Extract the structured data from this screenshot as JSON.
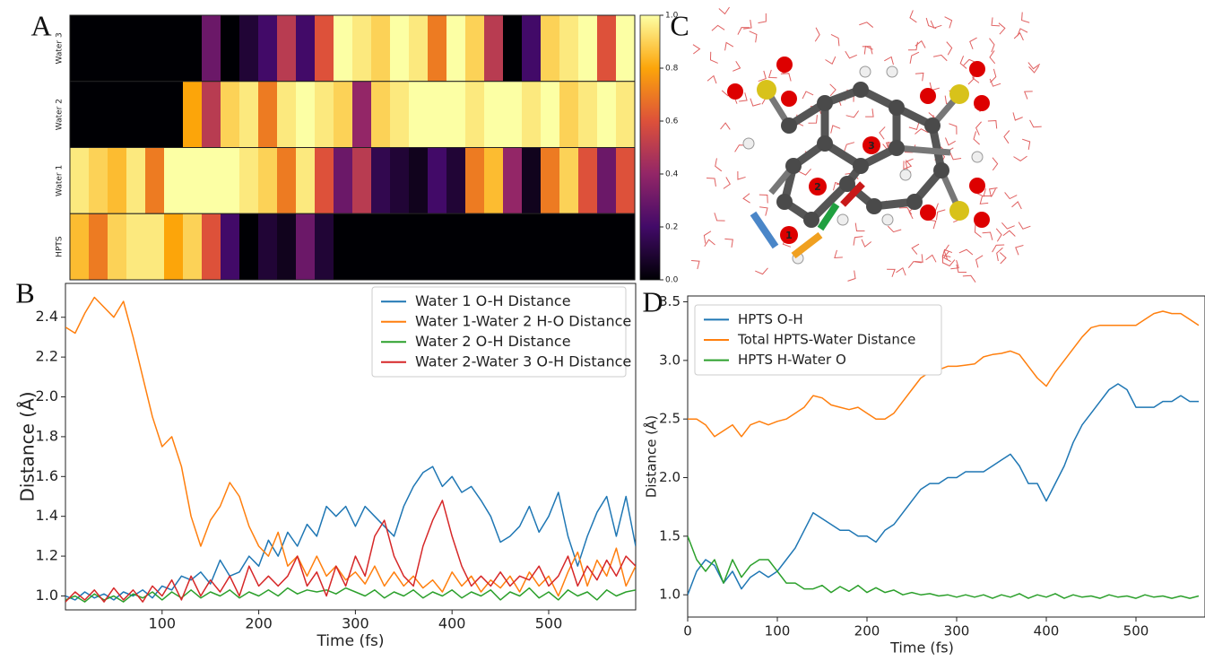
{
  "chart_data": [
    {
      "type": "heatmap",
      "label": "A",
      "rows": [
        "Water 3",
        "Water 2",
        "Water 1",
        "HPTS"
      ],
      "values": [
        [
          0,
          0,
          0,
          0,
          0,
          0,
          0,
          0.3,
          0,
          0.1,
          0.2,
          0.5,
          0.2,
          0.6,
          1,
          0.95,
          0.9,
          1,
          0.95,
          0.7,
          1,
          0.9,
          0.5,
          0,
          0.2,
          0.9,
          0.95,
          1,
          0.6,
          1
        ],
        [
          0,
          0,
          0,
          0,
          0,
          0,
          0.8,
          0.5,
          0.9,
          0.95,
          0.7,
          0.95,
          1,
          0.95,
          0.9,
          0.4,
          0.9,
          0.95,
          1,
          1,
          1,
          0.95,
          1,
          1,
          0.95,
          1,
          0.9,
          0.95,
          1,
          0.95
        ],
        [
          0.95,
          0.9,
          0.85,
          0.95,
          0.7,
          1,
          1,
          1,
          1,
          0.95,
          0.9,
          0.7,
          0.95,
          0.6,
          0.3,
          0.5,
          0.15,
          0.1,
          0.05,
          0.2,
          0.1,
          0.7,
          0.85,
          0.4,
          0.05,
          0.7,
          0.9,
          0.6,
          0.3,
          0.6
        ],
        [
          0.85,
          0.7,
          0.9,
          0.95,
          0.95,
          0.8,
          0.9,
          0.6,
          0.2,
          0,
          0.1,
          0.05,
          0.3,
          0.1,
          0,
          0,
          0,
          0,
          0,
          0,
          0,
          0,
          0,
          0,
          0,
          0,
          0,
          0,
          0,
          0
        ]
      ],
      "colormap": [
        "#000004",
        "#420a68",
        "#932667",
        "#dd513a",
        "#fca50a",
        "#fcffa4"
      ],
      "zlim": [
        0,
        1
      ],
      "zticks": [
        {
          "value": 0,
          "label": "0.0"
        },
        0.2,
        0.4,
        0.6,
        0.8,
        {
          "value": 1,
          "label": "1.0"
        }
      ]
    },
    {
      "type": "image",
      "label": "C",
      "atom_labels": [
        "1",
        "2",
        "3"
      ]
    },
    {
      "type": "line",
      "label": "B",
      "xlabel": "Time (fs)",
      "ylabel": "Distance (Å)",
      "x": [
        0,
        10,
        20,
        30,
        40,
        50,
        60,
        70,
        80,
        90,
        100,
        110,
        120,
        130,
        140,
        150,
        160,
        170,
        180,
        190,
        200,
        210,
        220,
        230,
        240,
        250,
        260,
        270,
        280,
        290,
        300,
        310,
        320,
        330,
        340,
        350,
        360,
        370,
        380,
        390,
        400,
        410,
        420,
        430,
        440,
        450,
        460,
        470,
        480,
        490,
        500,
        510,
        520,
        530,
        540,
        550,
        560,
        570,
        580,
        590
      ],
      "series": [
        {
          "name": "Water 1 O-H Distance",
          "color": "#1f77b4",
          "values": [
            1.0,
            0.98,
            1.02,
            0.99,
            1.01,
            0.98,
            1.02,
            1.0,
            1.03,
            0.99,
            1.05,
            1.03,
            1.1,
            1.08,
            1.12,
            1.06,
            1.18,
            1.1,
            1.12,
            1.2,
            1.15,
            1.28,
            1.2,
            1.32,
            1.25,
            1.36,
            1.3,
            1.45,
            1.4,
            1.45,
            1.35,
            1.45,
            1.4,
            1.35,
            1.3,
            1.45,
            1.55,
            1.62,
            1.65,
            1.55,
            1.6,
            1.52,
            1.55,
            1.48,
            1.4,
            1.27,
            1.3,
            1.35,
            1.45,
            1.32,
            1.4,
            1.52,
            1.3,
            1.15,
            1.3,
            1.42,
            1.5,
            1.3,
            1.5,
            1.25
          ]
        },
        {
          "name": "Water 1-Water 2 H-O Distance",
          "color": "#ff7f0e",
          "values": [
            2.35,
            2.32,
            2.42,
            2.5,
            2.45,
            2.4,
            2.48,
            2.3,
            2.1,
            1.9,
            1.75,
            1.8,
            1.65,
            1.4,
            1.25,
            1.38,
            1.45,
            1.57,
            1.5,
            1.35,
            1.25,
            1.2,
            1.32,
            1.15,
            1.2,
            1.1,
            1.2,
            1.1,
            1.15,
            1.08,
            1.12,
            1.06,
            1.15,
            1.05,
            1.12,
            1.05,
            1.1,
            1.04,
            1.08,
            1.02,
            1.12,
            1.05,
            1.1,
            1.02,
            1.08,
            1.04,
            1.1,
            1.02,
            1.12,
            1.05,
            1.1,
            1.0,
            1.12,
            1.22,
            1.05,
            1.18,
            1.1,
            1.24,
            1.05,
            1.15
          ]
        },
        {
          "name": "Water 2 O-H Distance",
          "color": "#2ca02c",
          "values": [
            0.98,
            1.0,
            0.97,
            1.01,
            0.98,
            1.0,
            0.97,
            1.01,
            0.99,
            1.02,
            0.98,
            1.02,
            0.99,
            1.03,
            0.99,
            1.02,
            1.0,
            1.03,
            0.99,
            1.02,
            1.0,
            1.03,
            1.0,
            1.04,
            1.01,
            1.03,
            1.02,
            1.03,
            1.01,
            1.04,
            1.02,
            1.0,
            1.03,
            0.99,
            1.02,
            1.0,
            1.03,
            0.99,
            1.02,
            1.0,
            1.03,
            0.99,
            1.02,
            1.0,
            1.03,
            0.98,
            1.02,
            1.0,
            1.04,
            0.99,
            1.02,
            0.98,
            1.03,
            1.0,
            1.02,
            0.98,
            1.03,
            1.0,
            1.02,
            1.03
          ]
        },
        {
          "name": "Water 2-Water 3 O-H Distance",
          "color": "#d62728",
          "values": [
            0.97,
            1.02,
            0.98,
            1.03,
            0.97,
            1.04,
            0.98,
            1.03,
            0.97,
            1.05,
            1.0,
            1.08,
            0.98,
            1.1,
            1.0,
            1.08,
            1.02,
            1.1,
            1.0,
            1.15,
            1.05,
            1.1,
            1.05,
            1.1,
            1.2,
            1.05,
            1.12,
            1.0,
            1.15,
            1.05,
            1.2,
            1.1,
            1.3,
            1.38,
            1.2,
            1.1,
            1.05,
            1.25,
            1.38,
            1.48,
            1.3,
            1.15,
            1.05,
            1.1,
            1.05,
            1.12,
            1.05,
            1.1,
            1.08,
            1.15,
            1.05,
            1.1,
            1.2,
            1.05,
            1.15,
            1.08,
            1.18,
            1.1,
            1.2,
            1.15
          ]
        }
      ],
      "xlim": [
        0,
        590
      ],
      "ylim": [
        0.93,
        2.57
      ],
      "xticks": [
        100,
        200,
        300,
        400,
        500
      ],
      "yticks": [
        {
          "value": 1,
          "label": "1.0"
        },
        1.2,
        1.4,
        1.6,
        1.8,
        {
          "value": 2,
          "label": "2.0"
        },
        2.2,
        2.4
      ]
    },
    {
      "type": "line",
      "label": "D",
      "xlabel": "Time (fs)",
      "ylabel": "Distance (Å)",
      "x": [
        0,
        10,
        20,
        30,
        40,
        50,
        60,
        70,
        80,
        90,
        100,
        110,
        120,
        130,
        140,
        150,
        160,
        170,
        180,
        190,
        200,
        210,
        220,
        230,
        240,
        250,
        260,
        270,
        280,
        290,
        300,
        310,
        320,
        330,
        340,
        350,
        360,
        370,
        380,
        390,
        400,
        410,
        420,
        430,
        440,
        450,
        460,
        470,
        480,
        490,
        500,
        510,
        520,
        530,
        540,
        550,
        560,
        570
      ],
      "series": [
        {
          "name": "HPTS O-H",
          "color": "#1f77b4",
          "values": [
            1.0,
            1.2,
            1.3,
            1.25,
            1.1,
            1.2,
            1.05,
            1.15,
            1.2,
            1.15,
            1.2,
            1.3,
            1.4,
            1.55,
            1.7,
            1.65,
            1.6,
            1.55,
            1.55,
            1.5,
            1.5,
            1.45,
            1.55,
            1.6,
            1.7,
            1.8,
            1.9,
            1.95,
            1.95,
            2.0,
            2.0,
            2.05,
            2.05,
            2.05,
            2.1,
            2.15,
            2.2,
            2.1,
            1.95,
            1.95,
            1.8,
            1.95,
            2.1,
            2.3,
            2.45,
            2.55,
            2.65,
            2.75,
            2.8,
            2.75,
            2.6,
            2.6,
            2.6,
            2.65,
            2.65,
            2.7,
            2.65,
            2.65
          ]
        },
        {
          "name": "Total HPTS-Water Distance",
          "color": "#ff7f0e",
          "values": [
            2.5,
            2.5,
            2.45,
            2.35,
            2.4,
            2.45,
            2.35,
            2.45,
            2.48,
            2.45,
            2.48,
            2.5,
            2.55,
            2.6,
            2.7,
            2.68,
            2.62,
            2.6,
            2.58,
            2.6,
            2.55,
            2.5,
            2.5,
            2.55,
            2.65,
            2.75,
            2.85,
            2.9,
            2.92,
            2.95,
            2.95,
            2.96,
            2.97,
            3.03,
            3.05,
            3.06,
            3.08,
            3.05,
            2.95,
            2.85,
            2.78,
            2.9,
            3.0,
            3.1,
            3.2,
            3.28,
            3.3,
            3.3,
            3.3,
            3.3,
            3.3,
            3.35,
            3.4,
            3.42,
            3.4,
            3.4,
            3.35,
            3.3
          ]
        },
        {
          "name": "HPTS H-Water O",
          "color": "#2ca02c",
          "values": [
            1.5,
            1.3,
            1.2,
            1.3,
            1.1,
            1.3,
            1.15,
            1.25,
            1.3,
            1.3,
            1.2,
            1.1,
            1.1,
            1.05,
            1.05,
            1.08,
            1.02,
            1.07,
            1.03,
            1.08,
            1.02,
            1.06,
            1.02,
            1.04,
            1.0,
            1.02,
            1.0,
            1.01,
            0.99,
            1.0,
            0.98,
            1.0,
            0.98,
            1.0,
            0.97,
            1.0,
            0.98,
            1.01,
            0.97,
            1.0,
            0.98,
            1.01,
            0.97,
            1.0,
            0.98,
            0.99,
            0.97,
            1.0,
            0.98,
            0.99,
            0.97,
            1.0,
            0.98,
            0.99,
            0.97,
            0.99,
            0.97,
            0.99
          ]
        }
      ],
      "xlim": [
        0,
        577
      ],
      "ylim": [
        0.81,
        3.55
      ],
      "xticks": [
        0,
        100,
        200,
        300,
        400,
        500
      ],
      "yticks": [
        {
          "value": 1,
          "label": "1.0"
        },
        1.5,
        {
          "value": 2,
          "label": "2.0"
        },
        2.5,
        {
          "value": 3,
          "label": "3.0"
        },
        3.5
      ]
    }
  ]
}
